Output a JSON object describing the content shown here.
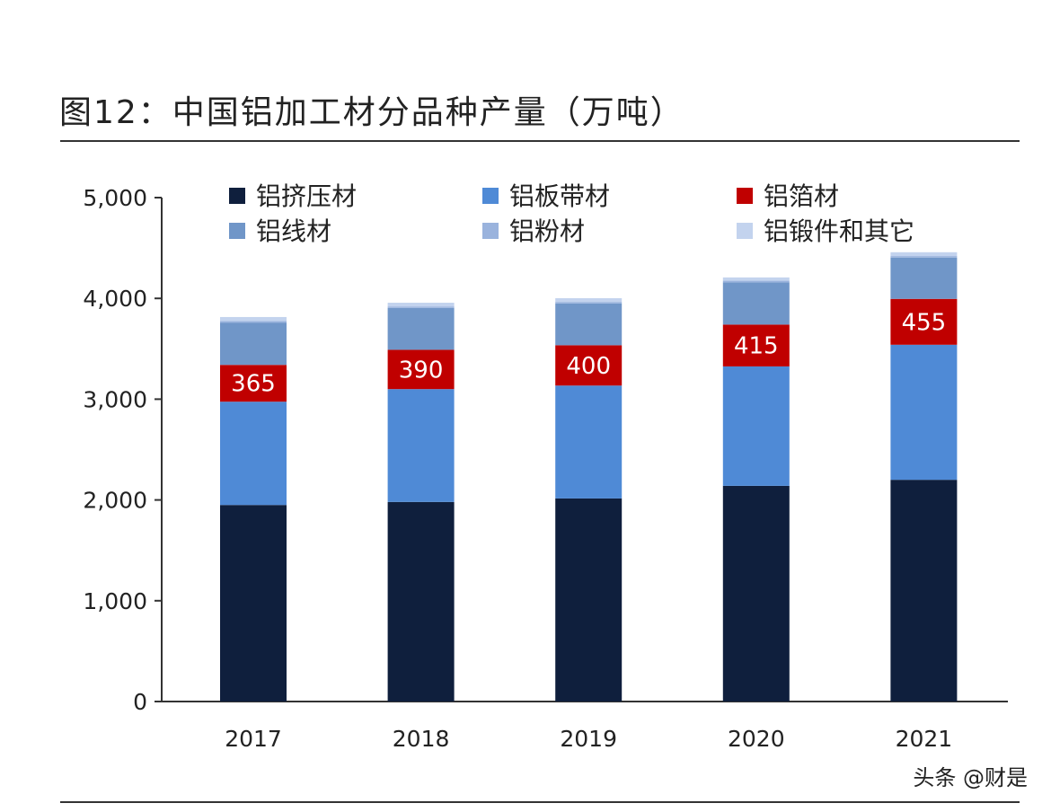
{
  "title": "图12：中国铝加工材分品种产量（万吨）",
  "watermark": "头条 @财是",
  "chart_data": {
    "type": "bar",
    "stacked": true,
    "title": "图12：中国铝加工材分品种产量（万吨）",
    "xlabel": "",
    "ylabel": "",
    "ylim": [
      0,
      5000
    ],
    "yticks": [
      0,
      1000,
      2000,
      3000,
      4000,
      5000
    ],
    "ytick_labels": [
      "0",
      "1,000",
      "2,000",
      "3,000",
      "4,000",
      "5,000"
    ],
    "grid": false,
    "legend_position": "top",
    "categories": [
      "2017",
      "2018",
      "2019",
      "2020",
      "2021"
    ],
    "series": [
      {
        "name": "铝挤压材",
        "color": "#0f1f3d",
        "values": [
          1950,
          1980,
          2015,
          2140,
          2200
        ]
      },
      {
        "name": "铝板带材",
        "color": "#4f8ad6",
        "values": [
          1025,
          1120,
          1120,
          1185,
          1340
        ]
      },
      {
        "name": "铝箔材",
        "color": "#c00000",
        "values": [
          365,
          390,
          400,
          415,
          455
        ],
        "show_labels": true
      },
      {
        "name": "铝线材",
        "color": "#7096c8",
        "values": [
          420,
          415,
          415,
          420,
          410
        ]
      },
      {
        "name": "铝粉材",
        "color": "#9ab3dd",
        "values": [
          15,
          15,
          15,
          15,
          15
        ]
      },
      {
        "name": "铝锻件和其它",
        "color": "#c3d3ee",
        "values": [
          40,
          37,
          37,
          33,
          38
        ]
      }
    ]
  }
}
